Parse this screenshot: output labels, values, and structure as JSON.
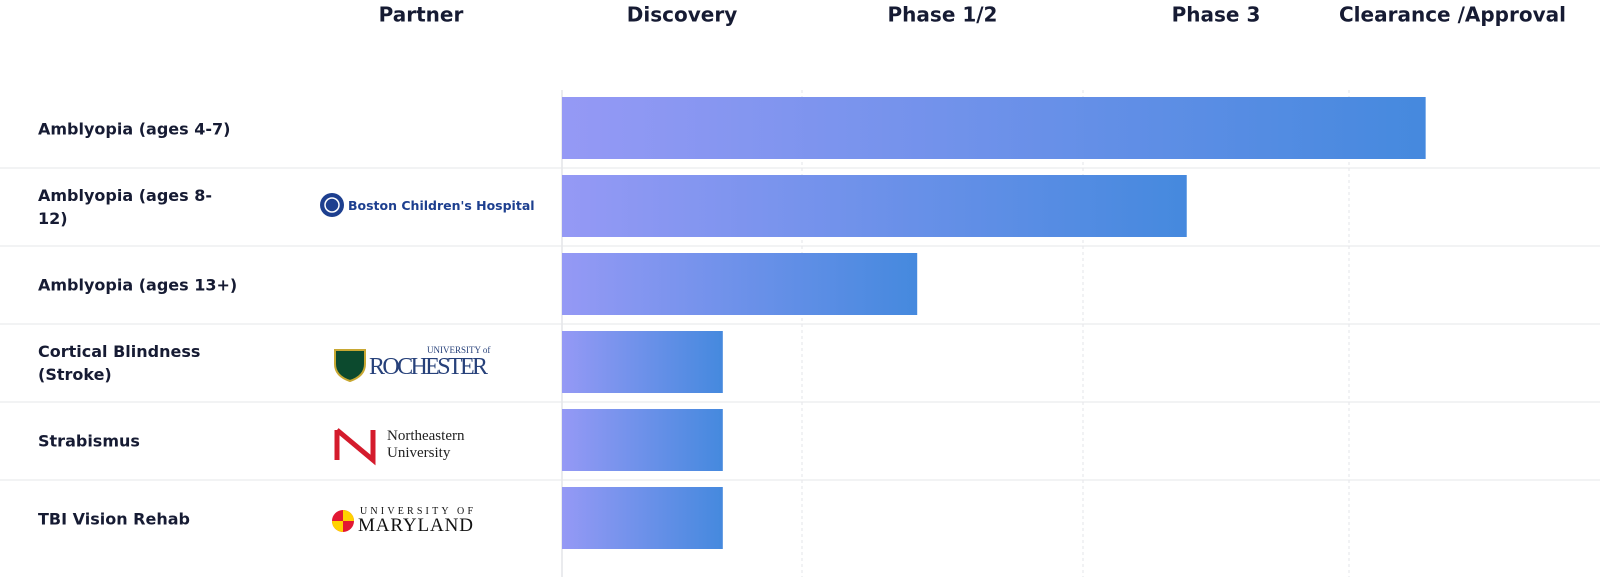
{
  "chart_data": {
    "type": "bar",
    "orientation": "horizontal",
    "partner_header": "Partner",
    "stages": [
      "Discovery",
      "Phase 1/2",
      "Phase 3",
      "Clearance /Approval"
    ],
    "categories": [
      "Amblyopia (ages 4-7)",
      "Amblyopia (ages 8-12)",
      "Amblyopia (ages 13+)",
      "Cortical Blindness (Stroke)",
      "Strabismus",
      "TBI Vision Rehab"
    ],
    "partners": [
      null,
      [
        "Boston Children's Hospital"
      ],
      null,
      [
        "UNIVERSITY of",
        "ROCHESTER"
      ],
      [
        "Northeastern",
        "University"
      ],
      [
        "UNIVERSITY OF",
        "MARYLAND"
      ]
    ],
    "values": [
      3.35,
      2.39,
      1.41,
      0.67,
      0.67,
      0.67
    ],
    "xlim": [
      0,
      4
    ],
    "colors": [
      "#9599f5",
      "#4589de"
    ]
  }
}
